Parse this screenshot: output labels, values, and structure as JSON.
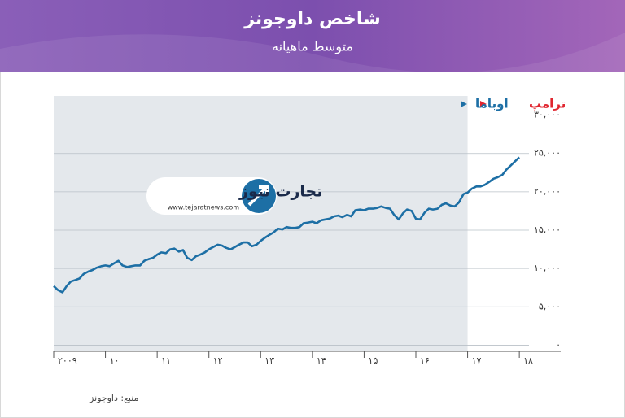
{
  "header": {
    "title": "شاخص داوجونز",
    "subtitle": "متوسط ماهیانه"
  },
  "logo": {
    "name": "تجارت نیوز",
    "url": "www.tejaratnews.com"
  },
  "source": "منبع: داوجونز",
  "chart_data": {
    "type": "line",
    "color": "#1d6fa5",
    "periods": [
      {
        "label": "اوباما",
        "color": "#1d6fa5",
        "from": 2009
      },
      {
        "label": "ترامپ",
        "color": "#e0262f",
        "from": 2017
      }
    ],
    "x": [
      2009,
      2009.08,
      2009.17,
      2009.25,
      2009.33,
      2009.42,
      2009.5,
      2009.58,
      2009.67,
      2009.75,
      2009.83,
      2009.92,
      2010,
      2010.08,
      2010.17,
      2010.25,
      2010.33,
      2010.42,
      2010.5,
      2010.58,
      2010.67,
      2010.75,
      2010.83,
      2010.92,
      2011,
      2011.08,
      2011.17,
      2011.25,
      2011.33,
      2011.42,
      2011.5,
      2011.58,
      2011.67,
      2011.75,
      2011.83,
      2011.92,
      2012,
      2012.08,
      2012.17,
      2012.25,
      2012.33,
      2012.42,
      2012.5,
      2012.58,
      2012.67,
      2012.75,
      2012.83,
      2012.92,
      2013,
      2013.08,
      2013.17,
      2013.25,
      2013.33,
      2013.42,
      2013.5,
      2013.58,
      2013.67,
      2013.75,
      2013.83,
      2013.92,
      2014,
      2014.08,
      2014.17,
      2014.25,
      2014.33,
      2014.42,
      2014.5,
      2014.58,
      2014.67,
      2014.75,
      2014.83,
      2014.92,
      2015,
      2015.08,
      2015.17,
      2015.25,
      2015.33,
      2015.42,
      2015.5,
      2015.58,
      2015.67,
      2015.75,
      2015.83,
      2015.92,
      2016,
      2016.08,
      2016.17,
      2016.25,
      2016.33,
      2016.42,
      2016.5,
      2016.58,
      2016.67,
      2016.75,
      2016.83,
      2016.92,
      2017,
      2017.08,
      2017.17,
      2017.25,
      2017.33,
      2017.42,
      2017.5,
      2017.58,
      2017.67,
      2017.75,
      2017.83,
      2017.92,
      2018
    ],
    "values": [
      7700,
      7200,
      6900,
      7700,
      8300,
      8500,
      8700,
      9300,
      9600,
      9800,
      10100,
      10300,
      10400,
      10300,
      10700,
      11000,
      10400,
      10200,
      10300,
      10400,
      10400,
      11000,
      11200,
      11400,
      11800,
      12100,
      12000,
      12500,
      12600,
      12200,
      12400,
      11400,
      11100,
      11600,
      11800,
      12100,
      12500,
      12800,
      13100,
      13000,
      12700,
      12500,
      12800,
      13100,
      13400,
      13400,
      12900,
      13100,
      13600,
      14000,
      14400,
      14700,
      15200,
      15100,
      15400,
      15300,
      15300,
      15400,
      15900,
      16000,
      16100,
      15900,
      16300,
      16400,
      16500,
      16800,
      16900,
      16700,
      17000,
      16800,
      17600,
      17700,
      17600,
      17800,
      17800,
      17900,
      18100,
      17900,
      17800,
      17000,
      16400,
      17200,
      17700,
      17500,
      16500,
      16400,
      17300,
      17800,
      17700,
      17800,
      18300,
      18500,
      18200,
      18100,
      18600,
      19700,
      19900,
      20400,
      20700,
      20700,
      20900,
      21300,
      21700,
      21900,
      22200,
      22900,
      23400,
      24000,
      24500
    ],
    "xlim": [
      2009,
      2018.8
    ],
    "xticks": [
      {
        "value": 2009,
        "label": "۲۰۰۹"
      },
      {
        "value": 2010,
        "label": "۱۰"
      },
      {
        "value": 2011,
        "label": "۱۱"
      },
      {
        "value": 2012,
        "label": "۱۲"
      },
      {
        "value": 2013,
        "label": "۱۳"
      },
      {
        "value": 2014,
        "label": "۱۴"
      },
      {
        "value": 2015,
        "label": "۱۵"
      },
      {
        "value": 2016,
        "label": "۱۶"
      },
      {
        "value": 2017,
        "label": "۱۷"
      },
      {
        "value": 2018,
        "label": "۱۸"
      }
    ],
    "ylim": [
      -800,
      32500
    ],
    "yticks": [
      {
        "value": 0,
        "label": "۰"
      },
      {
        "value": 5000,
        "label": "۵,۰۰۰"
      },
      {
        "value": 10000,
        "label": "۱۰,۰۰۰"
      },
      {
        "value": 15000,
        "label": "۱۵,۰۰۰"
      },
      {
        "value": 20000,
        "label": "۲۰,۰۰۰"
      },
      {
        "value": 25000,
        "label": "۲۵,۰۰۰"
      },
      {
        "value": 30000,
        "label": "۳۰,۰۰۰"
      }
    ],
    "grid": true
  }
}
